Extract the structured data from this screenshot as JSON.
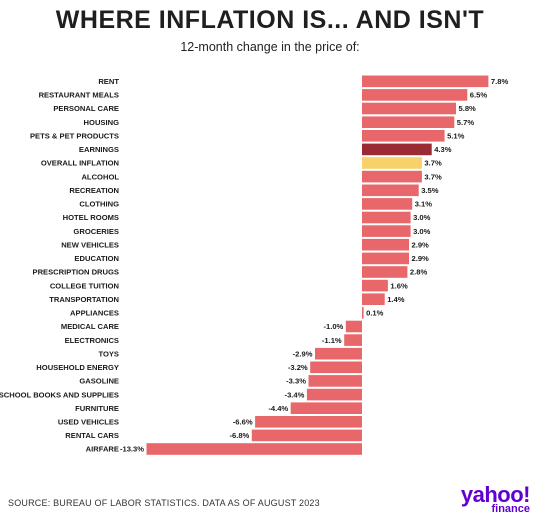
{
  "title": "WHERE INFLATION IS... AND ISN'T",
  "subtitle": "12-month change in the price of:",
  "footer": {
    "source": "SOURCE: BUREAU OF LABOR STATISTICS. DATA AS OF AUGUST 2023",
    "logo_word": "yahoo!",
    "logo_sub": "finance"
  },
  "colors": {
    "default": "#e8676a",
    "earnings": "#9b2b33",
    "overall_inflation": "#f7d26a",
    "logo": "#6001d2"
  },
  "chart_data": {
    "type": "bar",
    "orientation": "horizontal",
    "title": "WHERE INFLATION IS... AND ISN'T",
    "subtitle": "12-month change in the price of:",
    "categories": [
      "RENT",
      "RESTAURANT MEALS",
      "PERSONAL CARE",
      "HOUSING",
      "PETS & PET PRODUCTS",
      "EARNINGS",
      "OVERALL INFLATION",
      "ALCOHOL",
      "RECREATION",
      "CLOTHING",
      "HOTEL ROOMS",
      "GROCERIES",
      "NEW VEHICLES",
      "EDUCATION",
      "PRESCRIPTION DRUGS",
      "COLLEGE TUITION",
      "TRANSPORTATION",
      "APPLIANCES",
      "MEDICAL CARE",
      "ELECTRONICS",
      "TOYS",
      "HOUSEHOLD ENERGY",
      "GASOLINE",
      "SCHOOL BOOKS AND SUPPLIES",
      "FURNITURE",
      "USED VEHICLES",
      "RENTAL CARS",
      "AIRFARE"
    ],
    "values": [
      7.8,
      6.5,
      5.8,
      5.7,
      5.1,
      4.3,
      3.7,
      3.7,
      3.5,
      3.1,
      3.0,
      3.0,
      2.9,
      2.9,
      2.8,
      1.6,
      1.4,
      0.1,
      -1.0,
      -1.1,
      -2.9,
      -3.2,
      -3.3,
      -3.4,
      -4.4,
      -6.6,
      -6.8,
      -13.3
    ],
    "labels": [
      "7.8%",
      "6.5%",
      "5.8%",
      "5.7%",
      "5.1%",
      "4.3%",
      "3.7%",
      "3.7%",
      "3.5%",
      "3.1%",
      "3.0%",
      "3.0%",
      "2.9%",
      "2.9%",
      "2.8%",
      "1.6%",
      "1.4%",
      "0.1%",
      "-1.0%",
      "-1.1%",
      "-2.9%",
      "-3.2%",
      "-3.3%",
      "-3.4%",
      "-4.4%",
      "-6.6%",
      "-6.8%",
      "-13.3%"
    ],
    "highlights": {
      "EARNINGS": "earnings",
      "OVERALL INFLATION": "overall_inflation"
    },
    "xlim": [
      -13.3,
      7.8
    ],
    "grid": false,
    "legend": "none"
  }
}
